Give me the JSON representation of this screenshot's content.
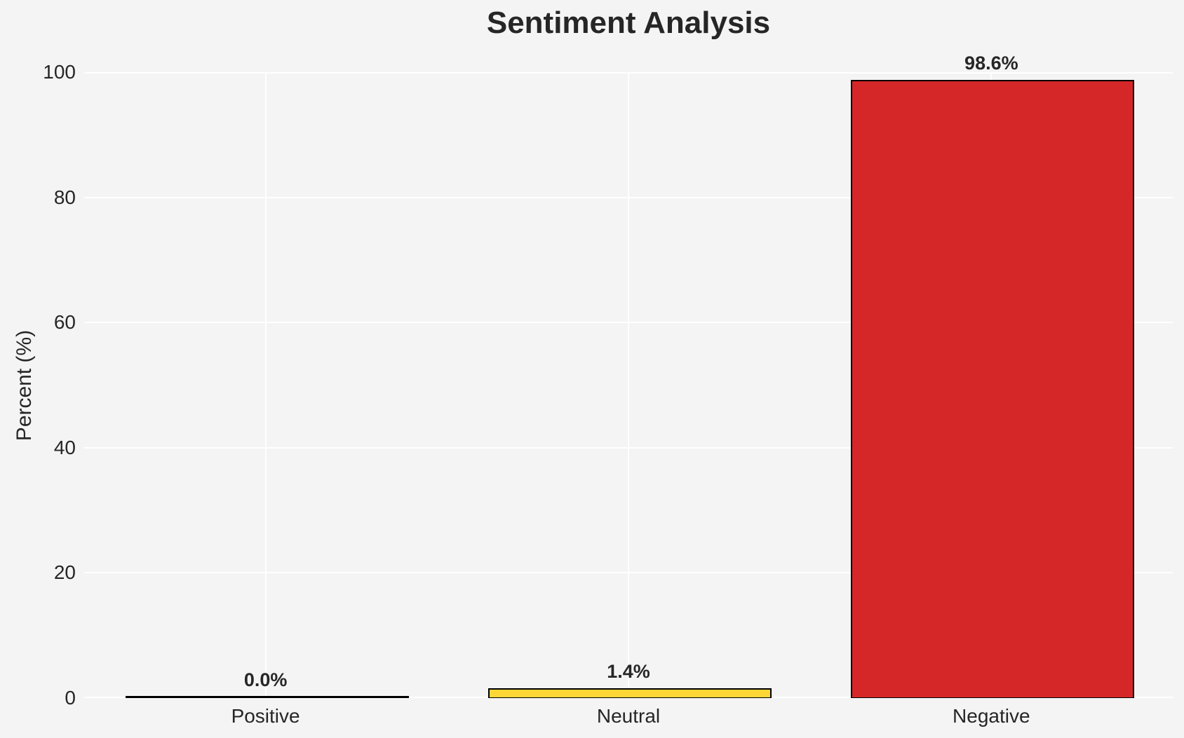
{
  "colors": {
    "background": "#f4f4f5",
    "gridline": "#ffffff",
    "text": "#262626",
    "bar_edge": "#000000",
    "neutral_yellow": "#fcd735",
    "negative_red": "#d62728"
  },
  "chart_data": {
    "type": "bar",
    "title": "Sentiment Analysis",
    "xlabel": "",
    "ylabel": "Percent (%)",
    "categories": [
      "Positive",
      "Neutral",
      "Negative"
    ],
    "values": [
      0.0,
      1.4,
      98.6
    ],
    "value_labels": [
      "0.0%",
      "1.4%",
      "98.6%"
    ],
    "bar_colors": [
      "none",
      "#fcd735",
      "#d62728"
    ],
    "bar_edge_color": "#000000",
    "ylim": [
      0,
      100
    ],
    "yticks": [
      0,
      20,
      40,
      60,
      80,
      100
    ],
    "grid": true,
    "legend": false
  }
}
